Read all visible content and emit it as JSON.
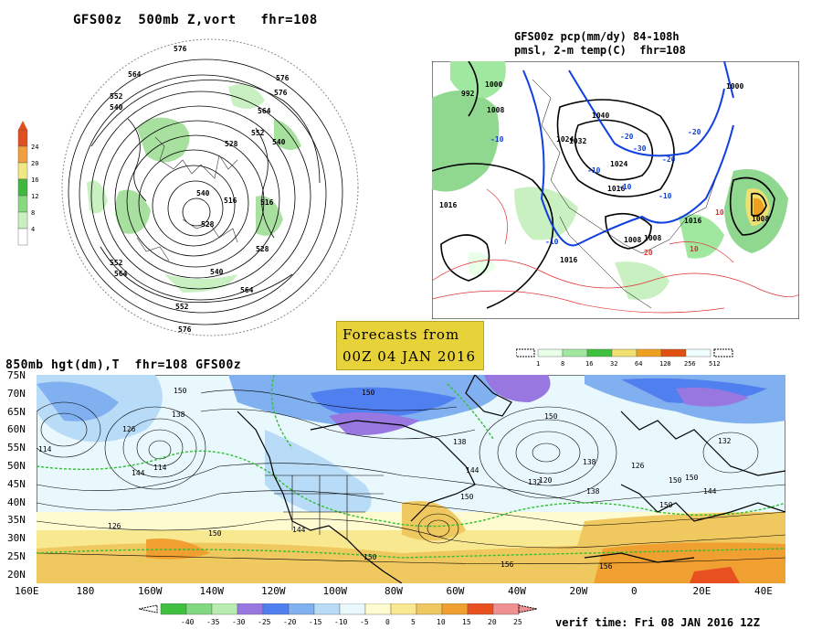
{
  "top_left_panel": {
    "title": "GFS00z  500mb Z,vort   fhr=108",
    "colorbar_ticks": [
      "24",
      "20",
      "16",
      "12",
      "8",
      "4"
    ],
    "colorbar_colors": [
      "#ffffff",
      "#c8f0c0",
      "#88d880",
      "#40b840",
      "#f0e880",
      "#f0a040",
      "#e05020"
    ],
    "contour_labels": [
      "576",
      "564",
      "552",
      "540",
      "528",
      "516",
      "576",
      "564",
      "552",
      "540",
      "528",
      "516",
      "540",
      "564",
      "576",
      "552",
      "540",
      "528",
      "552",
      "564",
      "576"
    ]
  },
  "top_right_panel": {
    "title_line1": "GFS00z pcp(mm/dy) 84-108h",
    "title_line2": "pmsl, 2-m temp(C)  fhr=108",
    "colorbar_ticks": [
      "1",
      "8",
      "16",
      "32",
      "64",
      "128",
      "256",
      "512"
    ],
    "colorbar_colors": [
      "#e8ffe8",
      "#a0e8a0",
      "#40c040",
      "#f0e070",
      "#f0a020",
      "#e05010",
      "#f0ffff"
    ],
    "pressure_labels": [
      "1000",
      "992",
      "1008",
      "1016",
      "1024",
      "1032",
      "1040",
      "1024",
      "1016",
      "1008",
      "1000",
      "1016",
      "1008",
      "1016",
      "1008"
    ],
    "temp_labels": [
      "-10",
      "-20",
      "-30",
      "-10",
      "-20",
      "-10",
      "10",
      "20",
      "10",
      "-10",
      "-10",
      "-20"
    ]
  },
  "banner": {
    "line1": "Forecasts from",
    "line2": "00Z 04 JAN 2016"
  },
  "bottom_panel": {
    "title": "850mb hgt(dm),T  fhr=108 GFS00z",
    "lat_labels": [
      "75N",
      "70N",
      "65N",
      "60N",
      "55N",
      "50N",
      "45N",
      "40N",
      "35N",
      "30N",
      "25N",
      "20N"
    ],
    "lon_labels": [
      "160E",
      "180",
      "160W",
      "140W",
      "120W",
      "100W",
      "80W",
      "60W",
      "40W",
      "20W",
      "0",
      "20E",
      "40E"
    ],
    "colorbar_ticks": [
      "-40",
      "-35",
      "-30",
      "-25",
      "-20",
      "-15",
      "-10",
      "-5",
      "0",
      "5",
      "10",
      "15",
      "20",
      "25"
    ],
    "colorbar_colors": [
      "#40c040",
      "#80d880",
      "#b8ecb0",
      "#9878e0",
      "#5080f0",
      "#80b0f0",
      "#b8dcf8",
      "#e8f8fc",
      "#fffbd0",
      "#f8e890",
      "#f0c860",
      "#f0a030",
      "#e85020",
      "#f09090"
    ],
    "height_labels": [
      "150",
      "138",
      "126",
      "114",
      "114",
      "150",
      "144",
      "150",
      "138",
      "150",
      "144",
      "126",
      "132",
      "120",
      "138",
      "150",
      "156",
      "150",
      "144",
      "150",
      "126",
      "132",
      "138",
      "150",
      "144",
      "150",
      "156"
    ],
    "verif_time": "verif time: Fri 08 JAN 2016 12Z"
  }
}
